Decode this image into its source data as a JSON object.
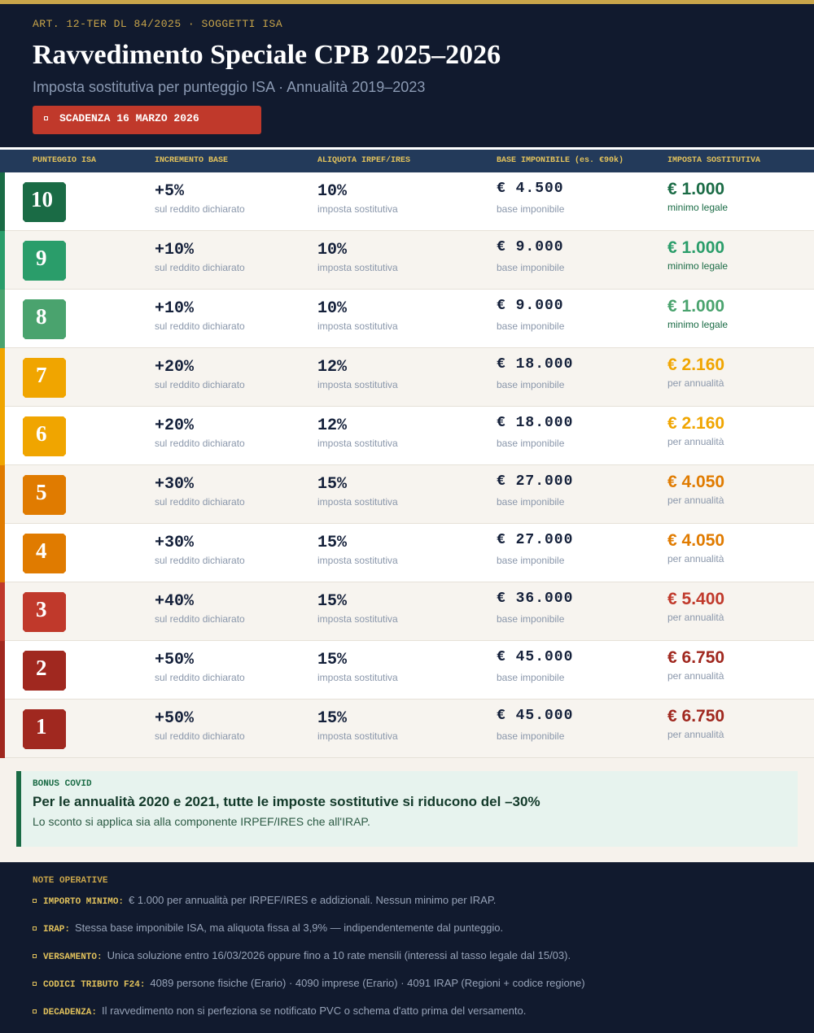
{
  "header": {
    "kicker": "ART. 12-TER DL 84/2025  ·  SOGGETTI ISA",
    "title": "Ravvedimento Speciale CPB 2025–2026",
    "subtitle": "Imposta sostitutiva per punteggio ISA  ·  Annualità 2019–2023",
    "deadline": "SCADENZA 16 MARZO 2026"
  },
  "table": {
    "columns": [
      "PUNTEGGIO ISA",
      "INCREMENTO BASE",
      "ALIQUOTA IRPEF/IRES",
      "BASE IMPONIBILE (es. €90k)",
      "IMPOSTA SOSTITUTIVA"
    ],
    "rows": [
      {
        "score": "10",
        "increment": "+5%",
        "increment_note": "sul reddito dichiarato",
        "rate": "10%",
        "rate_note": "imposta sostitutiva",
        "base": "€ 4.500",
        "base_note": "base imponibile",
        "tax": "€ 1.000",
        "tax_note": "minimo legale",
        "color": "#1a6b45"
      },
      {
        "score": "9",
        "increment": "+10%",
        "increment_note": "sul reddito dichiarato",
        "rate": "10%",
        "rate_note": "imposta sostitutiva",
        "base": "€ 9.000",
        "base_note": "base imponibile",
        "tax": "€ 1.000",
        "tax_note": "minimo legale",
        "color": "#2a9d6a"
      },
      {
        "score": "8",
        "increment": "+10%",
        "increment_note": "sul reddito dichiarato",
        "rate": "10%",
        "rate_note": "imposta sostitutiva",
        "base": "€ 9.000",
        "base_note": "base imponibile",
        "tax": "€ 1.000",
        "tax_note": "minimo legale",
        "color": "#4aa36e"
      },
      {
        "score": "7",
        "increment": "+20%",
        "increment_note": "sul reddito dichiarato",
        "rate": "12%",
        "rate_note": "imposta sostitutiva",
        "base": "€ 18.000",
        "base_note": "base imponibile",
        "tax": "€ 2.160",
        "tax_note": "per annualità",
        "color": "#f0a500"
      },
      {
        "score": "6",
        "increment": "+20%",
        "increment_note": "sul reddito dichiarato",
        "rate": "12%",
        "rate_note": "imposta sostitutiva",
        "base": "€ 18.000",
        "base_note": "base imponibile",
        "tax": "€ 2.160",
        "tax_note": "per annualità",
        "color": "#f0a500"
      },
      {
        "score": "5",
        "increment": "+30%",
        "increment_note": "sul reddito dichiarato",
        "rate": "15%",
        "rate_note": "imposta sostitutiva",
        "base": "€ 27.000",
        "base_note": "base imponibile",
        "tax": "€ 4.050",
        "tax_note": "per annualità",
        "color": "#e07b00"
      },
      {
        "score": "4",
        "increment": "+30%",
        "increment_note": "sul reddito dichiarato",
        "rate": "15%",
        "rate_note": "imposta sostitutiva",
        "base": "€ 27.000",
        "base_note": "base imponibile",
        "tax": "€ 4.050",
        "tax_note": "per annualità",
        "color": "#e07b00"
      },
      {
        "score": "3",
        "increment": "+40%",
        "increment_note": "sul reddito dichiarato",
        "rate": "15%",
        "rate_note": "imposta sostitutiva",
        "base": "€ 36.000",
        "base_note": "base imponibile",
        "tax": "€ 5.400",
        "tax_note": "per annualità",
        "color": "#c0392b"
      },
      {
        "score": "2",
        "increment": "+50%",
        "increment_note": "sul reddito dichiarato",
        "rate": "15%",
        "rate_note": "imposta sostitutiva",
        "base": "€ 45.000",
        "base_note": "base imponibile",
        "tax": "€ 6.750",
        "tax_note": "per annualità",
        "color": "#a0281f"
      },
      {
        "score": "1",
        "increment": "+50%",
        "increment_note": "sul reddito dichiarato",
        "rate": "15%",
        "rate_note": "imposta sostitutiva",
        "base": "€ 45.000",
        "base_note": "base imponibile",
        "tax": "€ 6.750",
        "tax_note": "per annualità",
        "color": "#a0281f"
      }
    ]
  },
  "bonus": {
    "kicker": "BONUS COVID",
    "headline": "Per le annualità 2020 e 2021, tutte le imposte sostitutive si riducono del  –30%",
    "text": "Lo sconto si applica sia alla componente IRPEF/IRES che all'IRAP."
  },
  "notes": {
    "title": "NOTE OPERATIVE",
    "items": [
      {
        "label": "IMPORTO MINIMO:",
        "text": "€ 1.000 per annualità per IRPEF/IRES e addizionali. Nessun minimo per IRAP."
      },
      {
        "label": "IRAP:",
        "text": "Stessa base imponibile ISA, ma aliquota fissa al 3,9% — indipendentemente dal punteggio."
      },
      {
        "label": "VERSAMENTO:",
        "text": "Unica soluzione entro 16/03/2026 oppure fino a 10 rate mensili (interessi al tasso legale dal 15/03)."
      },
      {
        "label": "CODICI TRIBUTO F24:",
        "text": "4089 persone fisiche (Erario)  ·  4090 imprese (Erario)  ·  4091 IRAP (Regioni + codice regione)"
      },
      {
        "label": "DECADENZA:",
        "text": "Il ravvedimento non si perfeziona se notificato PVC o schema d'atto prima del versamento."
      }
    ]
  }
}
